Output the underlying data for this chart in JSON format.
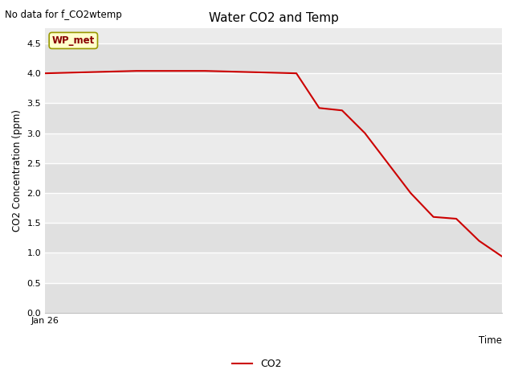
{
  "title": "Water CO2 and Temp",
  "top_left_text": "No data for f_CO2wtemp",
  "ylabel": "CO2 Concentration (ppm)",
  "xlabel": "Time",
  "x_tick_label": "Jan 26",
  "ylim": [
    0.0,
    4.75
  ],
  "yticks": [
    0.0,
    0.5,
    1.0,
    1.5,
    2.0,
    2.5,
    3.0,
    3.5,
    4.0,
    4.5
  ],
  "line_color": "#cc0000",
  "line_width": 1.5,
  "bg_color": "#ebebeb",
  "legend_label": "CO2",
  "annotation_text": "WP_met",
  "annotation_bbox_facecolor": "#ffffcc",
  "annotation_bbox_edgecolor": "#999900",
  "x_data": [
    0,
    1,
    2,
    3,
    4,
    5,
    6,
    7,
    8,
    9,
    10,
    11,
    12,
    13,
    14,
    15,
    16,
    17,
    18,
    19,
    20
  ],
  "y_data": [
    4.0,
    4.01,
    4.02,
    4.03,
    4.04,
    4.04,
    4.04,
    4.04,
    4.03,
    4.02,
    4.01,
    4.0,
    3.42,
    3.38,
    3.0,
    2.5,
    2.0,
    1.6,
    1.57,
    1.2,
    0.94
  ],
  "xlim": [
    0,
    20
  ],
  "figsize": [
    6.4,
    4.8
  ],
  "dpi": 100
}
